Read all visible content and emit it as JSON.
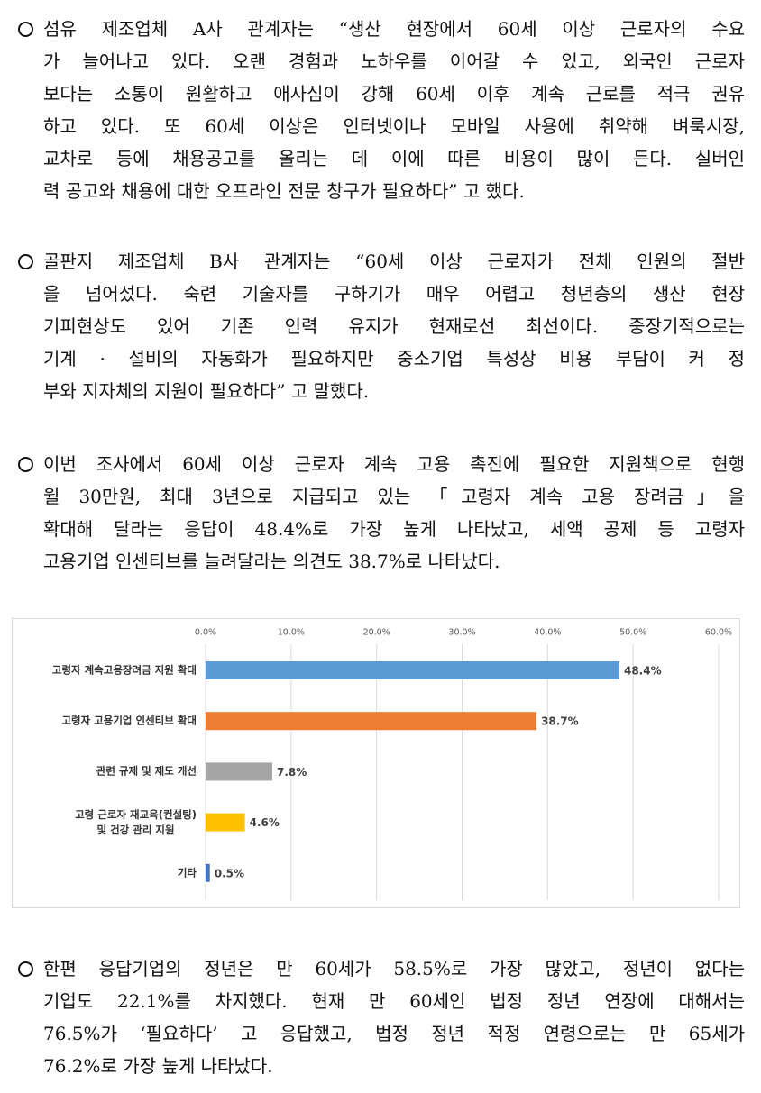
{
  "paragraphs": [
    {
      "lines": [
        "섬유 제조업체 A사 관계자는 “생산 현장에서 60세 이상 근로자의 수요",
        "가 늘어나고 있다. 오랜 경험과 노하우를 이어갈 수 있고, 외국인 근로자",
        "보다는 소통이 원활하고 애사심이 강해 60세 이후 계속 근로를 적극 권유",
        "하고 있다. 또 60세 이상은 인터넷이나 모바일 사용에 취약해 벼룩시장,",
        "교차로 등에 채용공고를 올리는 데 이에 따른 비용이 많이 든다. 실버인",
        "력 공고와 채용에 대한 오프라인 전문 창구가 필요하다” 고 했다."
      ]
    },
    {
      "lines": [
        "골판지 제조업체 B사 관계자는 “60세 이상 근로자가 전체 인원의 절반",
        "을 넘어섰다. 숙련 기술자를 구하기가 매우 어렵고 청년층의 생산 현장",
        "기피현상도 있어 기존 인력 유지가 현재로선 최선이다. 중장기적으로는",
        "기계 · 설비의 자동화가 필요하지만 중소기업 특성상 비용 부담이 커 정",
        "부와 지자체의 지원이 필요하다” 고 말했다."
      ]
    },
    {
      "lines": [
        "이번 조사에서 60세 이상 근로자 계속 고용 촉진에 필요한 지원책으로 현행",
        "월 30만원, 최대 3년으로 지급되고 있는 「고령자 계속 고용 장려금」을",
        "확대해 달라는 응답이 48.4%로 가장 높게 나타났고, 세액 공제 등 고령자",
        "고용기업 인센티브를 늘려달라는 의견도 38.7%로 나타났다."
      ]
    },
    {
      "lines": [
        "한편 응답기업의 정년은 만 60세가 58.5%로 가장 많았고, 정년이 없다는",
        "기업도 22.1%를 차지했다. 현재 만 60세인 법정 정년 연장에 대해서는",
        "76.5%가 ‘필요하다’ 고 응답했고, 법정 정년 적정 연령으로는 만 65세가",
        "76.2%로 가장 높게 나타났다."
      ]
    }
  ],
  "chart_data": {
    "type": "bar",
    "orientation": "horizontal",
    "categories": [
      "고령자 계속고용장려금 지원 확대",
      "고령자 고용기업 인센티브 확대",
      "관련 규제 및 제도 개선",
      "고령 근로자 재교육(컨설팅)\n및 건강 관리 지원",
      "기타"
    ],
    "values": [
      48.4,
      38.7,
      7.8,
      4.6,
      0.5
    ],
    "value_labels": [
      "48.4%",
      "38.7%",
      "7.8%",
      "4.6%",
      "0.5%"
    ],
    "colors": [
      "#5b9bd5",
      "#ed7d31",
      "#a5a5a5",
      "#ffc000",
      "#4472c4"
    ],
    "xlim": [
      0,
      60
    ],
    "xticks": [
      {
        "value": 0,
        "label": "0.0%"
      },
      {
        "value": 10,
        "label": "10.0%"
      },
      {
        "value": 20,
        "label": "20.0%"
      },
      {
        "value": 30,
        "label": "30.0%"
      },
      {
        "value": 40,
        "label": "40.0%"
      },
      {
        "value": 50,
        "label": "50.0%"
      },
      {
        "value": 60,
        "label": "60.0%"
      }
    ],
    "grid": true
  }
}
